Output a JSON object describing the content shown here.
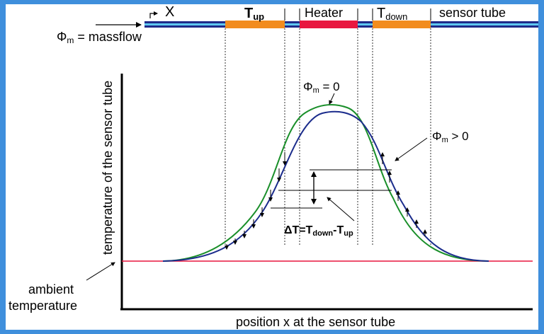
{
  "labels": {
    "x_marker": "X",
    "t_up": "T",
    "t_up_sub": "up",
    "heater": "Heater",
    "t_down": "T",
    "t_down_sub": "down",
    "sensor_tube": "sensor tube",
    "massflow_phi": "Φ",
    "massflow_sub": "m",
    "massflow_rest": " = massflow",
    "phi0_phi": "Φ",
    "phi0_sub": "m",
    "phi0_rest": " = 0",
    "phigt0_phi": "Φ",
    "phigt0_sub": "m",
    "phigt0_rest": " > 0",
    "delta_main": "ΔT=T",
    "delta_sub1": "down",
    "delta_mid": "-T",
    "delta_sub2": "up",
    "y_axis": "temperature of the sensor tube",
    "x_axis": "position x at the sensor tube",
    "ambient_line1": "ambient",
    "ambient_line2": "temperature"
  },
  "colors": {
    "background_frame": "#3f8fdc",
    "tube_outer": "#1f2b8a",
    "tube_inner": "#5ec8f0",
    "t_up_block": "#f28c1e",
    "heater_block": "#e8173f",
    "t_down_block": "#f28c1e",
    "curve_no_flow": "#1a8f2a",
    "curve_with_flow": "#1b2c8c",
    "ambient_line": "#e8173f"
  }
}
